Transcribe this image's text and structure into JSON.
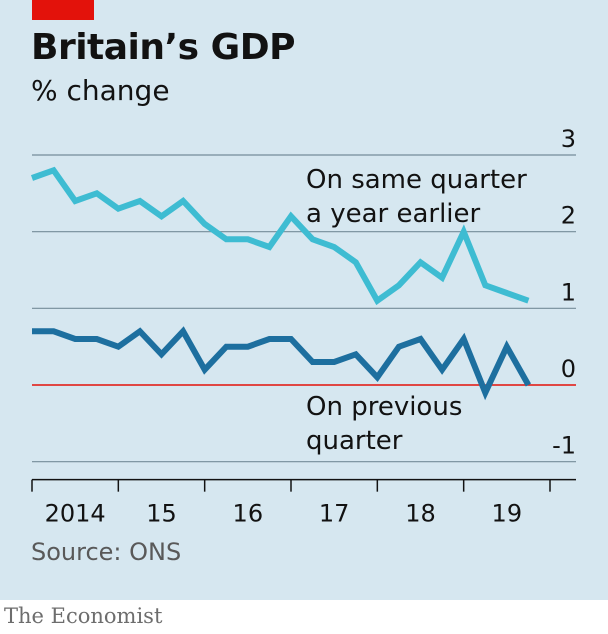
{
  "header": {
    "title": "Britain’s GDP",
    "subtitle": "% change"
  },
  "footer": {
    "source": "Source: ONS",
    "brand": "The Economist"
  },
  "colors": {
    "background": "#d6e7f0",
    "accent": "#e3120b",
    "series_yoy": "#3ebcd2",
    "series_qoq": "#1d6f9f",
    "zero_line": "#e3120b",
    "grid": "#758d99"
  },
  "chart_data": {
    "type": "line",
    "title": "Britain’s GDP",
    "subtitle": "% change",
    "ylabel": "% change",
    "ylim": [
      -1,
      3
    ],
    "y_ticks": [
      "3",
      "2",
      "1",
      "0",
      "-1"
    ],
    "y_tick_values": [
      3,
      2,
      1,
      0,
      -1
    ],
    "year_labels": [
      "2014",
      "15",
      "16",
      "17",
      "18",
      "19"
    ],
    "year_label_positions": [
      2014,
      2015,
      2016,
      2017,
      2018,
      2019
    ],
    "x_year_boundaries": [
      2014,
      2015,
      2016,
      2017,
      2018,
      2019,
      2020
    ],
    "x": [
      2014.0,
      2014.25,
      2014.5,
      2014.75,
      2015.0,
      2015.25,
      2015.5,
      2015.75,
      2016.0,
      2016.25,
      2016.5,
      2016.75,
      2017.0,
      2017.25,
      2017.5,
      2017.75,
      2018.0,
      2018.25,
      2018.5,
      2018.75,
      2019.0,
      2019.25,
      2019.5,
      2019.75
    ],
    "series": [
      {
        "name": "On same quarter a year earlier",
        "label_lines": [
          "On same quarter",
          "a year earlier"
        ],
        "values": [
          2.7,
          2.8,
          2.4,
          2.5,
          2.3,
          2.4,
          2.2,
          2.4,
          2.1,
          1.9,
          1.9,
          1.8,
          2.2,
          1.9,
          1.8,
          1.6,
          1.1,
          1.3,
          1.6,
          1.4,
          2.0,
          1.3,
          1.2,
          1.1
        ]
      },
      {
        "name": "On previous quarter",
        "label_lines": [
          "On previous",
          "quarter"
        ],
        "values": [
          0.7,
          0.7,
          0.6,
          0.6,
          0.5,
          0.7,
          0.4,
          0.7,
          0.2,
          0.5,
          0.5,
          0.6,
          0.6,
          0.3,
          0.3,
          0.4,
          0.1,
          0.5,
          0.6,
          0.2,
          0.6,
          -0.1,
          0.5,
          0.0
        ]
      }
    ],
    "grid": true,
    "legend": "direct labels"
  }
}
